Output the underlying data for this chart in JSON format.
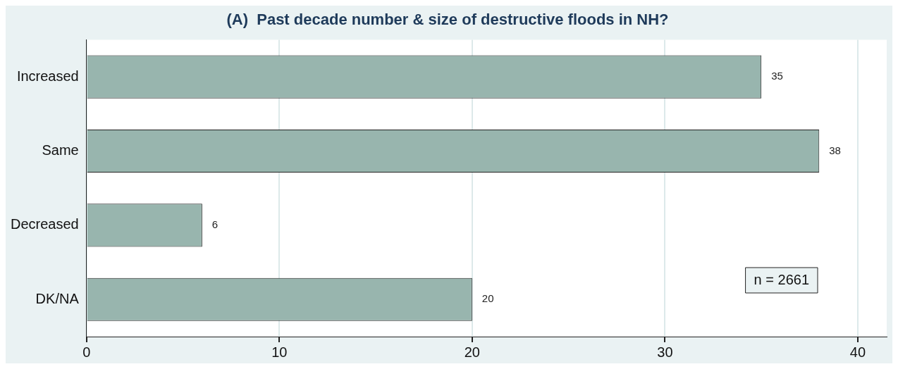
{
  "chart_data": {
    "type": "bar",
    "orientation": "horizontal",
    "title": "(A)  Past decade number & size of destructive floods in NH?",
    "categories": [
      "Increased",
      "Same",
      "Decreased",
      "DK/NA"
    ],
    "values": [
      35,
      38,
      6,
      20
    ],
    "color": "#98b5ae",
    "xlim": [
      0,
      41.5
    ],
    "xticks": [
      0,
      10,
      20,
      30,
      40
    ],
    "grid": "x",
    "data_labels": true,
    "legend": false,
    "annotations": [
      "n = 2661"
    ]
  }
}
